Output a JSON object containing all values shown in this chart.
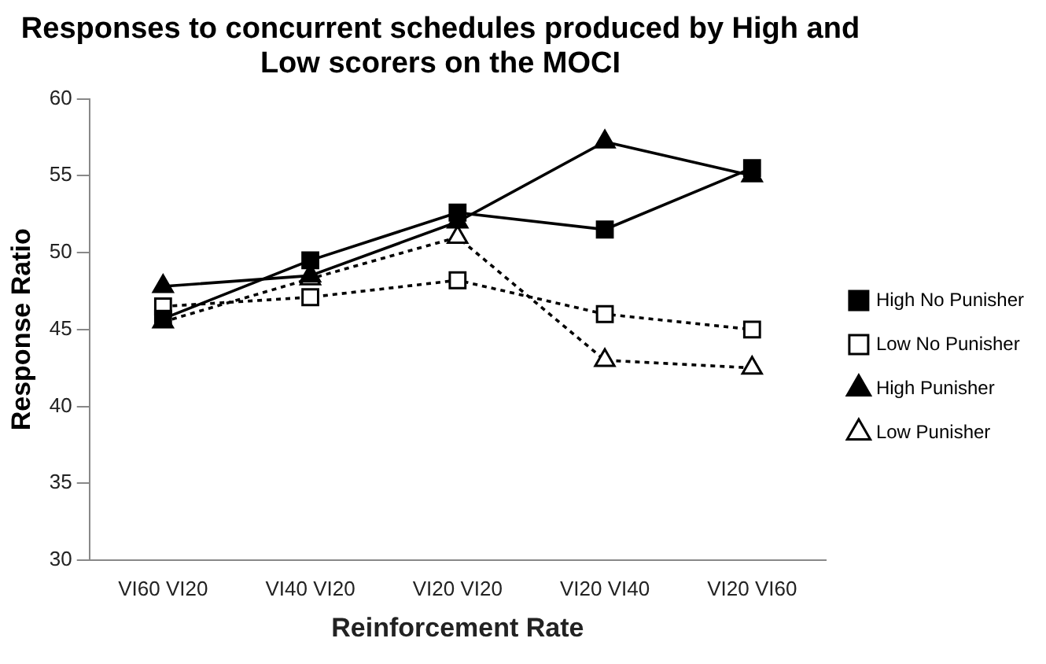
{
  "chart_data": {
    "type": "line",
    "title": "Responses to concurrent schedules produced by High and Low scorers on the MOCI",
    "xlabel": "Reinforcement Rate",
    "ylabel": "Response Ratio",
    "categories": [
      "VI60 VI20",
      "VI40 VI20",
      "VI20 VI20",
      "VI20 VI40",
      "VI20 VI60"
    ],
    "ylim": [
      30,
      60
    ],
    "yticks": [
      30,
      35,
      40,
      45,
      50,
      55,
      60
    ],
    "grid": false,
    "legend": "right",
    "series": [
      {
        "name": "High No Punisher",
        "color": "#000000",
        "marker": "square",
        "line_style": "solid",
        "values": [
          45.7,
          49.5,
          52.6,
          51.5,
          55.5
        ]
      },
      {
        "name": "Low No Punisher",
        "color": "#000000",
        "marker": "square",
        "line_style": "dotted",
        "values": [
          46.5,
          47.1,
          48.2,
          46.0,
          45.0
        ]
      },
      {
        "name": "High Punisher",
        "color": "#000000",
        "marker": "triangle",
        "line_style": "solid",
        "values": [
          47.8,
          48.5,
          52.0,
          57.2,
          55.0
        ]
      },
      {
        "name": "Low Punisher",
        "color": "#000000",
        "marker": "triangle",
        "line_style": "dotted",
        "values": [
          45.5,
          48.3,
          51.0,
          43.0,
          42.5
        ]
      }
    ]
  }
}
